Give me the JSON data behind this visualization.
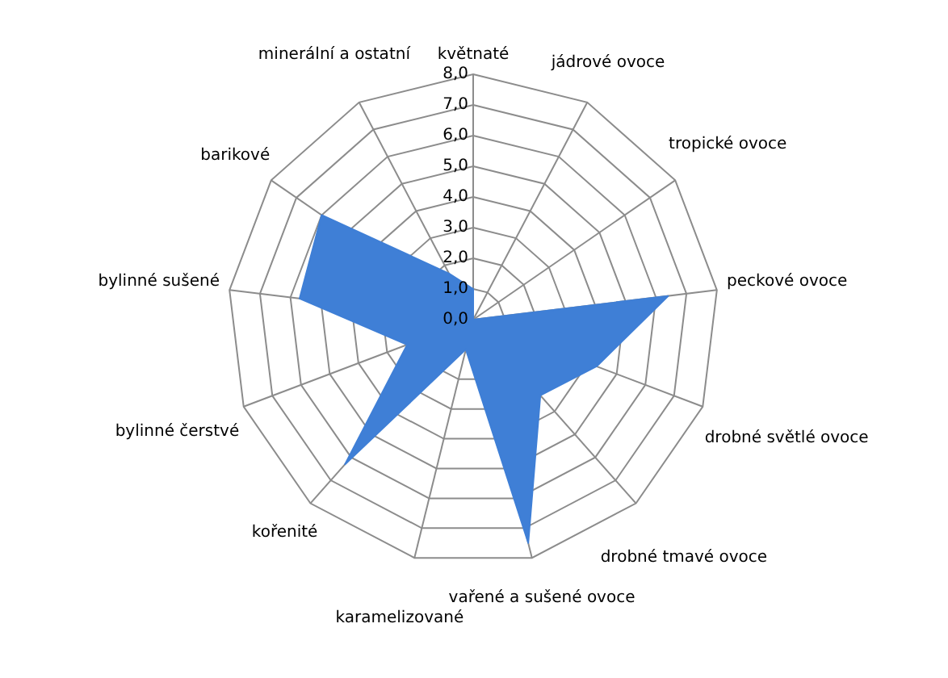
{
  "chart_data": {
    "type": "radar",
    "categories": [
      "květnaté",
      "jádrové ovoce",
      "tropické ovoce",
      "peckové ovoce",
      "drobné světlé ovoce",
      "drobné tmavé ovoce",
      "vařené a sušené ovoce",
      "karamelizované",
      "kořenité",
      "bylinné čerstvé",
      "bylinné sušené",
      "barikové",
      "minerální a ostatní"
    ],
    "series": [
      {
        "color": "#3f7fd6",
        "values": [
          1.0,
          0,
          0,
          6.4,
          4.3,
          3.3,
          7.5,
          1.0,
          6.3,
          2.3,
          5.7,
          6.0,
          1.7
        ]
      }
    ],
    "ylim": [
      0,
      8
    ],
    "yticks": [
      {
        "value": 0,
        "label": "0,0"
      },
      {
        "value": 1,
        "label": "1,0"
      },
      {
        "value": 2,
        "label": "2,0"
      },
      {
        "value": 3,
        "label": "3,0"
      },
      {
        "value": 4,
        "label": "4,0"
      },
      {
        "value": 5,
        "label": "5,0"
      },
      {
        "value": 6,
        "label": "6,0"
      },
      {
        "value": 7,
        "label": "7,0"
      },
      {
        "value": 8,
        "label": "8,0"
      }
    ],
    "grid": true,
    "legend": false
  }
}
